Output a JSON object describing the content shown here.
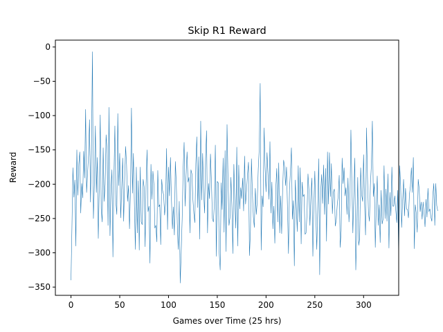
{
  "chart_data": {
    "type": "line",
    "title": "Skip R1 Reward",
    "xlabel": "Games over Time (25 hrs)",
    "ylabel": "Reward",
    "xlim": [
      -16,
      336
    ],
    "ylim": [
      -362,
      10
    ],
    "xticks": [
      0,
      50,
      100,
      150,
      200,
      250,
      300
    ],
    "yticks": [
      0,
      -50,
      -100,
      -150,
      -200,
      -250,
      -300,
      -350
    ],
    "xtick_labels": [
      "0",
      "50",
      "100",
      "150",
      "200",
      "250",
      "300"
    ],
    "ytick_labels": [
      "0",
      "−50",
      "−100",
      "−150",
      "−200",
      "−250",
      "−300",
      "−350"
    ],
    "grid": false,
    "series": [
      {
        "color": "#1f77b4",
        "values": [
          -340,
          -262,
          -176,
          -219,
          -194,
          -290,
          -150,
          -216,
          -171,
          -153,
          -242,
          -199,
          -220,
          -152,
          -191,
          -91,
          -212,
          -184,
          -157,
          -106,
          -226,
          -152,
          -7,
          -250,
          -199,
          -115,
          -212,
          -161,
          -279,
          -205,
          -99,
          -236,
          -255,
          -147,
          -225,
          -200,
          -128,
          -151,
          -260,
          -88,
          -275,
          -210,
          -179,
          -306,
          -191,
          -115,
          -226,
          -244,
          -97,
          -202,
          -155,
          -249,
          -205,
          -162,
          -254,
          -196,
          -145,
          -172,
          -225,
          -202,
          -265,
          -209,
          -89,
          -213,
          -155,
          -228,
          -295,
          -175,
          -271,
          -195,
          -296,
          -175,
          -255,
          -259,
          -193,
          -204,
          -291,
          -201,
          -150,
          -240,
          -232,
          -315,
          -171,
          -222,
          -181,
          -200,
          -264,
          -260,
          -284,
          -180,
          -233,
          -230,
          -288,
          -193,
          -210,
          -215,
          -245,
          -227,
          -148,
          -266,
          -175,
          -217,
          -161,
          -222,
          -265,
          -233,
          -274,
          -167,
          -200,
          -257,
          -295,
          -225,
          -344,
          -300,
          -251,
          -178,
          -139,
          -232,
          -187,
          -153,
          -197,
          -190,
          -271,
          -179,
          -185,
          -222,
          -243,
          -256,
          -170,
          -131,
          -234,
          -160,
          -280,
          -108,
          -223,
          -155,
          -211,
          -242,
          -162,
          -122,
          -271,
          -199,
          -221,
          -156,
          -195,
          -250,
          -255,
          -228,
          -143,
          -305,
          -196,
          -198,
          -301,
          -325,
          -198,
          -237,
          -162,
          -270,
          -151,
          -298,
          -113,
          -192,
          -260,
          -249,
          -190,
          -234,
          -301,
          -171,
          -223,
          -264,
          -146,
          -290,
          -172,
          -236,
          -205,
          -221,
          -191,
          -239,
          -159,
          -229,
          -210,
          -186,
          -168,
          -304,
          -268,
          -163,
          -212,
          -248,
          -263,
          -206,
          -244,
          -225,
          -178,
          -149,
          -53,
          -296,
          -217,
          -233,
          -118,
          -175,
          -211,
          -154,
          -184,
          -222,
          -138,
          -242,
          -197,
          -265,
          -232,
          -286,
          -206,
          -177,
          -255,
          -169,
          -271,
          -217,
          -272,
          -208,
          -165,
          -174,
          -202,
          -175,
          -236,
          -301,
          -209,
          -181,
          -147,
          -251,
          -224,
          -319,
          -194,
          -232,
          -269,
          -173,
          -255,
          -176,
          -287,
          -197,
          -218,
          -215,
          -273,
          -271,
          -243,
          -185,
          -209,
          -260,
          -217,
          -191,
          -305,
          -231,
          -181,
          -242,
          -295,
          -235,
          -163,
          -332,
          -212,
          -186,
          -228,
          -172,
          -244,
          -177,
          -283,
          -153,
          -229,
          -154,
          -218,
          -170,
          -243,
          -212,
          -207,
          -261,
          -252,
          -230,
          -217,
          -187,
          -292,
          -268,
          -162,
          -199,
          -176,
          -217,
          -205,
          -244,
          -191,
          -255,
          -226,
          -121,
          -200,
          -271,
          -215,
          -162,
          -325,
          -267,
          -190,
          -289,
          -279,
          -176,
          -215,
          -225,
          -157,
          -227,
          -274,
          -118,
          -190,
          -242,
          -254,
          -200,
          -172,
          -108,
          -218,
          -199,
          -292,
          -233,
          -188,
          -260,
          -230,
          -285,
          -209,
          -258,
          -251,
          -173,
          -250,
          -207,
          -254,
          -185,
          -293,
          -212,
          -246,
          -175,
          -232,
          -232,
          -217,
          -238,
          -256,
          -209,
          -311,
          -173,
          -202,
          -263,
          -225,
          -193,
          -246,
          -206,
          -236,
          -237,
          -249,
          -215,
          -203,
          -176,
          -212,
          -161,
          -294,
          -230,
          -242,
          -270,
          -193,
          -207,
          -240,
          -226,
          -251,
          -226,
          -242,
          -262,
          -222,
          -248,
          -206,
          -240,
          -236,
          -248,
          -254,
          -216,
          -199,
          -260,
          -199,
          -231,
          -239
        ]
      }
    ]
  }
}
